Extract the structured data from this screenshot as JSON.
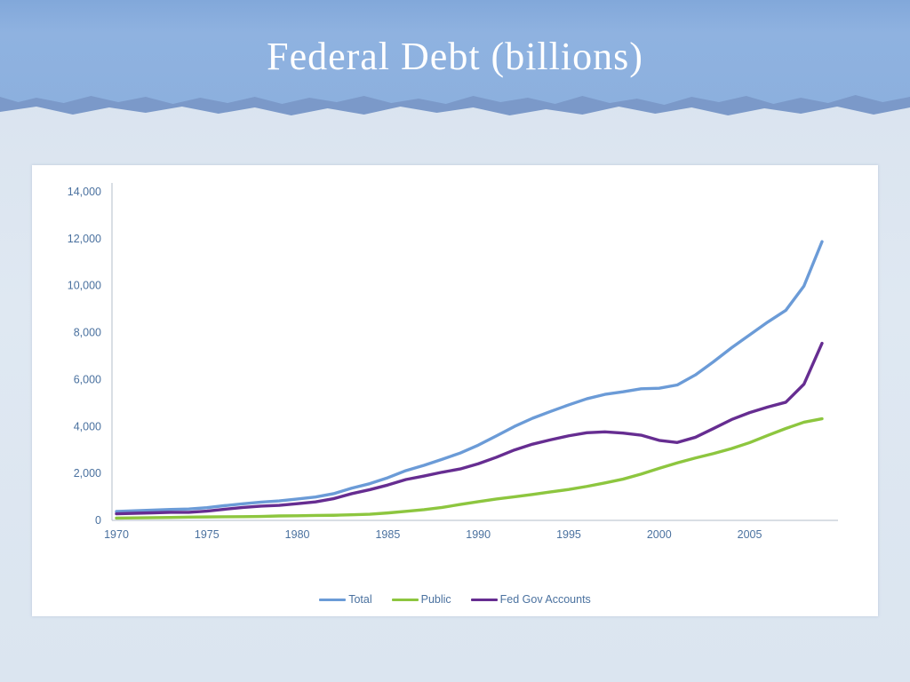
{
  "slide": {
    "title": "Federal Debt (billions)"
  },
  "chart_data": {
    "type": "line",
    "title": "Federal Debt (billions)",
    "xlabel": "",
    "ylabel": "",
    "grid": false,
    "legend_position": "bottom",
    "ylim": [
      0,
      14000
    ],
    "y_ticks": [
      0,
      2000,
      4000,
      6000,
      8000,
      10000,
      12000,
      14000
    ],
    "y_tick_labels": [
      "0",
      "2,000",
      "4,000",
      "6,000",
      "8,000",
      "10,000",
      "12,000",
      "14,000"
    ],
    "x_ticks": [
      1970,
      1975,
      1980,
      1985,
      1990,
      1995,
      2000,
      2005
    ],
    "x_tick_labels": [
      "1970",
      "1975",
      "1980",
      "1985",
      "1990",
      "1995",
      "2000",
      "2005"
    ],
    "axis_color": "#b3bcc9",
    "tick_color": "#4a719f",
    "x": [
      1970,
      1971,
      1972,
      1973,
      1974,
      1975,
      1976,
      1977,
      1978,
      1979,
      1980,
      1981,
      1982,
      1983,
      1984,
      1985,
      1986,
      1987,
      1988,
      1989,
      1990,
      1991,
      1992,
      1993,
      1994,
      1995,
      1996,
      1997,
      1998,
      1999,
      2000,
      2001,
      2002,
      2003,
      2004,
      2005,
      2006,
      2007,
      2008,
      2009
    ],
    "series": [
      {
        "name": "Total",
        "color": "#6b9bd7",
        "values": [
          381,
          408,
          436,
          466,
          484,
          541,
          629,
          706,
          776,
          829,
          909,
          994,
          1137,
          1371,
          1564,
          1817,
          2120,
          2346,
          2601,
          2868,
          3206,
          3598,
          4002,
          4351,
          4643,
          4921,
          5181,
          5369,
          5478,
          5606,
          5629,
          5770,
          6198,
          6760,
          7355,
          7905,
          8451,
          8951,
          9986,
          11876
        ]
      },
      {
        "name": "Public",
        "color": "#8dc63f",
        "values": [
          98,
          106,
          114,
          126,
          141,
          147,
          152,
          157,
          169,
          189,
          197,
          209,
          218,
          240,
          264,
          317,
          384,
          458,
          551,
          678,
          795,
          911,
          1003,
          1104,
          1211,
          1317,
          1447,
          1597,
          1757,
          1973,
          2219,
          2450,
          2658,
          2847,
          3059,
          3313,
          3622,
          3916,
          4183,
          4331
        ]
      },
      {
        "name": "Fed Gov Accounts",
        "color": "#662d91",
        "values": [
          283,
          303,
          322,
          341,
          344,
          394,
          477,
          549,
          607,
          640,
          712,
          789,
          925,
          1137,
          1307,
          1507,
          1741,
          1890,
          2052,
          2191,
          2412,
          2689,
          3000,
          3248,
          3433,
          3604,
          3734,
          3772,
          3721,
          3632,
          3410,
          3320,
          3540,
          3913,
          4296,
          4592,
          4829,
          5035,
          5803,
          7545
        ]
      }
    ]
  }
}
